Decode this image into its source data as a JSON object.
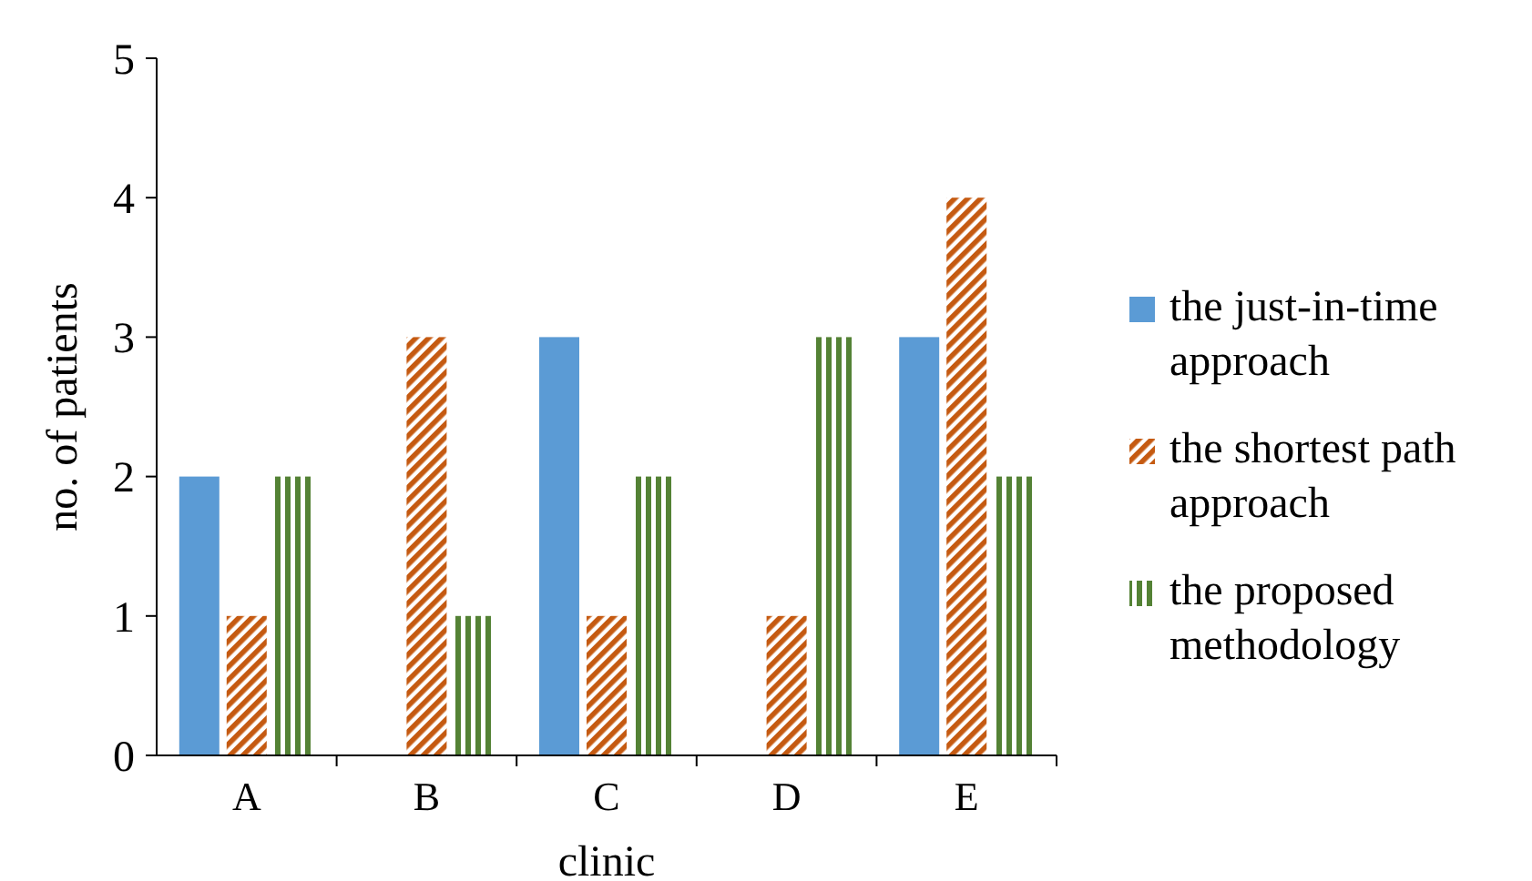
{
  "chart_data": {
    "type": "bar",
    "xlabel": "clinic",
    "ylabel": "no. of patients",
    "categories": [
      "A",
      "B",
      "C",
      "D",
      "E"
    ],
    "series": [
      {
        "name": "the just-in-time approach",
        "color": "#5b9bd5",
        "values": [
          2,
          0,
          3,
          0,
          3
        ]
      },
      {
        "name": "the shortest path approach",
        "color": "#c55a11",
        "values": [
          1,
          3,
          1,
          1,
          4
        ]
      },
      {
        "name": "the proposed methodology",
        "color": "#548235",
        "values": [
          2,
          1,
          2,
          3,
          2
        ]
      }
    ],
    "ylim": [
      0,
      5
    ],
    "yticks": [
      0,
      1,
      2,
      3,
      4,
      5
    ],
    "legend": "right"
  }
}
